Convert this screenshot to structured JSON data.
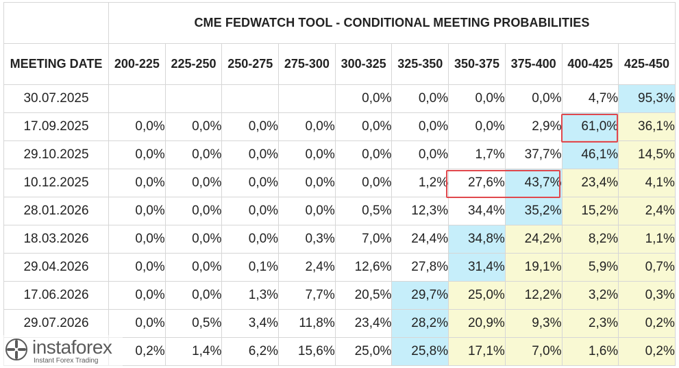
{
  "title": "CME FEDWATCH TOOL - CONDITIONAL MEETING PROBABILITIES",
  "header_date": "MEETING DATE",
  "columns": [
    "200-225",
    "225-250",
    "250-275",
    "275-300",
    "300-325",
    "325-350",
    "350-375",
    "375-400",
    "400-425",
    "425-450"
  ],
  "rows": [
    {
      "date": "30.07.2025",
      "values": [
        "",
        "",
        "",
        "",
        "0,0%",
        "0,0%",
        "0,0%",
        "0,0%",
        "4,7%",
        "95,3%"
      ]
    },
    {
      "date": "17.09.2025",
      "values": [
        "0,0%",
        "0,0%",
        "0,0%",
        "0,0%",
        "0,0%",
        "0,0%",
        "0,0%",
        "2,9%",
        "61,0%",
        "36,1%"
      ]
    },
    {
      "date": "29.10.2025",
      "values": [
        "0,0%",
        "0,0%",
        "0,0%",
        "0,0%",
        "0,0%",
        "0,0%",
        "1,7%",
        "37,7%",
        "46,1%",
        "14,5%"
      ]
    },
    {
      "date": "10.12.2025",
      "values": [
        "0,0%",
        "0,0%",
        "0,0%",
        "0,0%",
        "0,0%",
        "1,2%",
        "27,6%",
        "43,7%",
        "23,4%",
        "4,1%"
      ]
    },
    {
      "date": "28.01.2026",
      "values": [
        "0,0%",
        "0,0%",
        "0,0%",
        "0,0%",
        "0,5%",
        "12,3%",
        "34,4%",
        "35,2%",
        "15,2%",
        "2,4%"
      ]
    },
    {
      "date": "18.03.2026",
      "values": [
        "0,0%",
        "0,0%",
        "0,0%",
        "0,3%",
        "7,0%",
        "24,4%",
        "34,8%",
        "24,2%",
        "8,2%",
        "1,1%"
      ]
    },
    {
      "date": "29.04.2026",
      "values": [
        "0,0%",
        "0,0%",
        "0,1%",
        "2,4%",
        "12,6%",
        "27,8%",
        "31,4%",
        "19,1%",
        "5,9%",
        "0,7%"
      ]
    },
    {
      "date": "17.06.2026",
      "values": [
        "0,0%",
        "0,0%",
        "1,3%",
        "7,7%",
        "20,5%",
        "29,7%",
        "25,0%",
        "12,2%",
        "3,2%",
        "0,3%"
      ]
    },
    {
      "date": "29.07.2026",
      "values": [
        "0,0%",
        "0,5%",
        "3,4%",
        "11,8%",
        "23,4%",
        "28,2%",
        "20,9%",
        "9,3%",
        "2,3%",
        "0,2%"
      ]
    },
    {
      "date": "",
      "values": [
        "0,2%",
        "1,4%",
        "6,2%",
        "15,6%",
        "25,0%",
        "25,8%",
        "17,1%",
        "7,0%",
        "1,6%",
        "0,2%"
      ]
    }
  ],
  "cell_colors": {
    "blue": "#c6eefa",
    "yellow": "#f9f9d3",
    "highlight_border": "#e0474c",
    "grid": "#d6d6d6"
  },
  "cell_fill": [
    [
      "",
      "",
      "",
      "",
      "",
      "",
      "",
      "",
      "",
      "blue"
    ],
    [
      "",
      "",
      "",
      "",
      "",
      "",
      "",
      "",
      "blue",
      "yellow"
    ],
    [
      "",
      "",
      "",
      "",
      "",
      "",
      "",
      "",
      "blue",
      "yellow"
    ],
    [
      "",
      "",
      "",
      "",
      "",
      "",
      "",
      "blue",
      "yellow",
      "yellow"
    ],
    [
      "",
      "",
      "",
      "",
      "",
      "",
      "",
      "blue",
      "yellow",
      "yellow"
    ],
    [
      "",
      "",
      "",
      "",
      "",
      "",
      "blue",
      "yellow",
      "yellow",
      "yellow"
    ],
    [
      "",
      "",
      "",
      "",
      "",
      "",
      "blue",
      "yellow",
      "yellow",
      "yellow"
    ],
    [
      "",
      "",
      "",
      "",
      "",
      "blue",
      "yellow",
      "yellow",
      "yellow",
      "yellow"
    ],
    [
      "",
      "",
      "",
      "",
      "",
      "blue",
      "yellow",
      "yellow",
      "yellow",
      "yellow"
    ],
    [
      "",
      "",
      "",
      "",
      "",
      "blue",
      "yellow",
      "yellow",
      "yellow",
      "yellow"
    ]
  ],
  "watermark": {
    "brand": "instaforex",
    "tagline": "Instant Forex Trading",
    "icon": "instaforex-logo-icon"
  }
}
